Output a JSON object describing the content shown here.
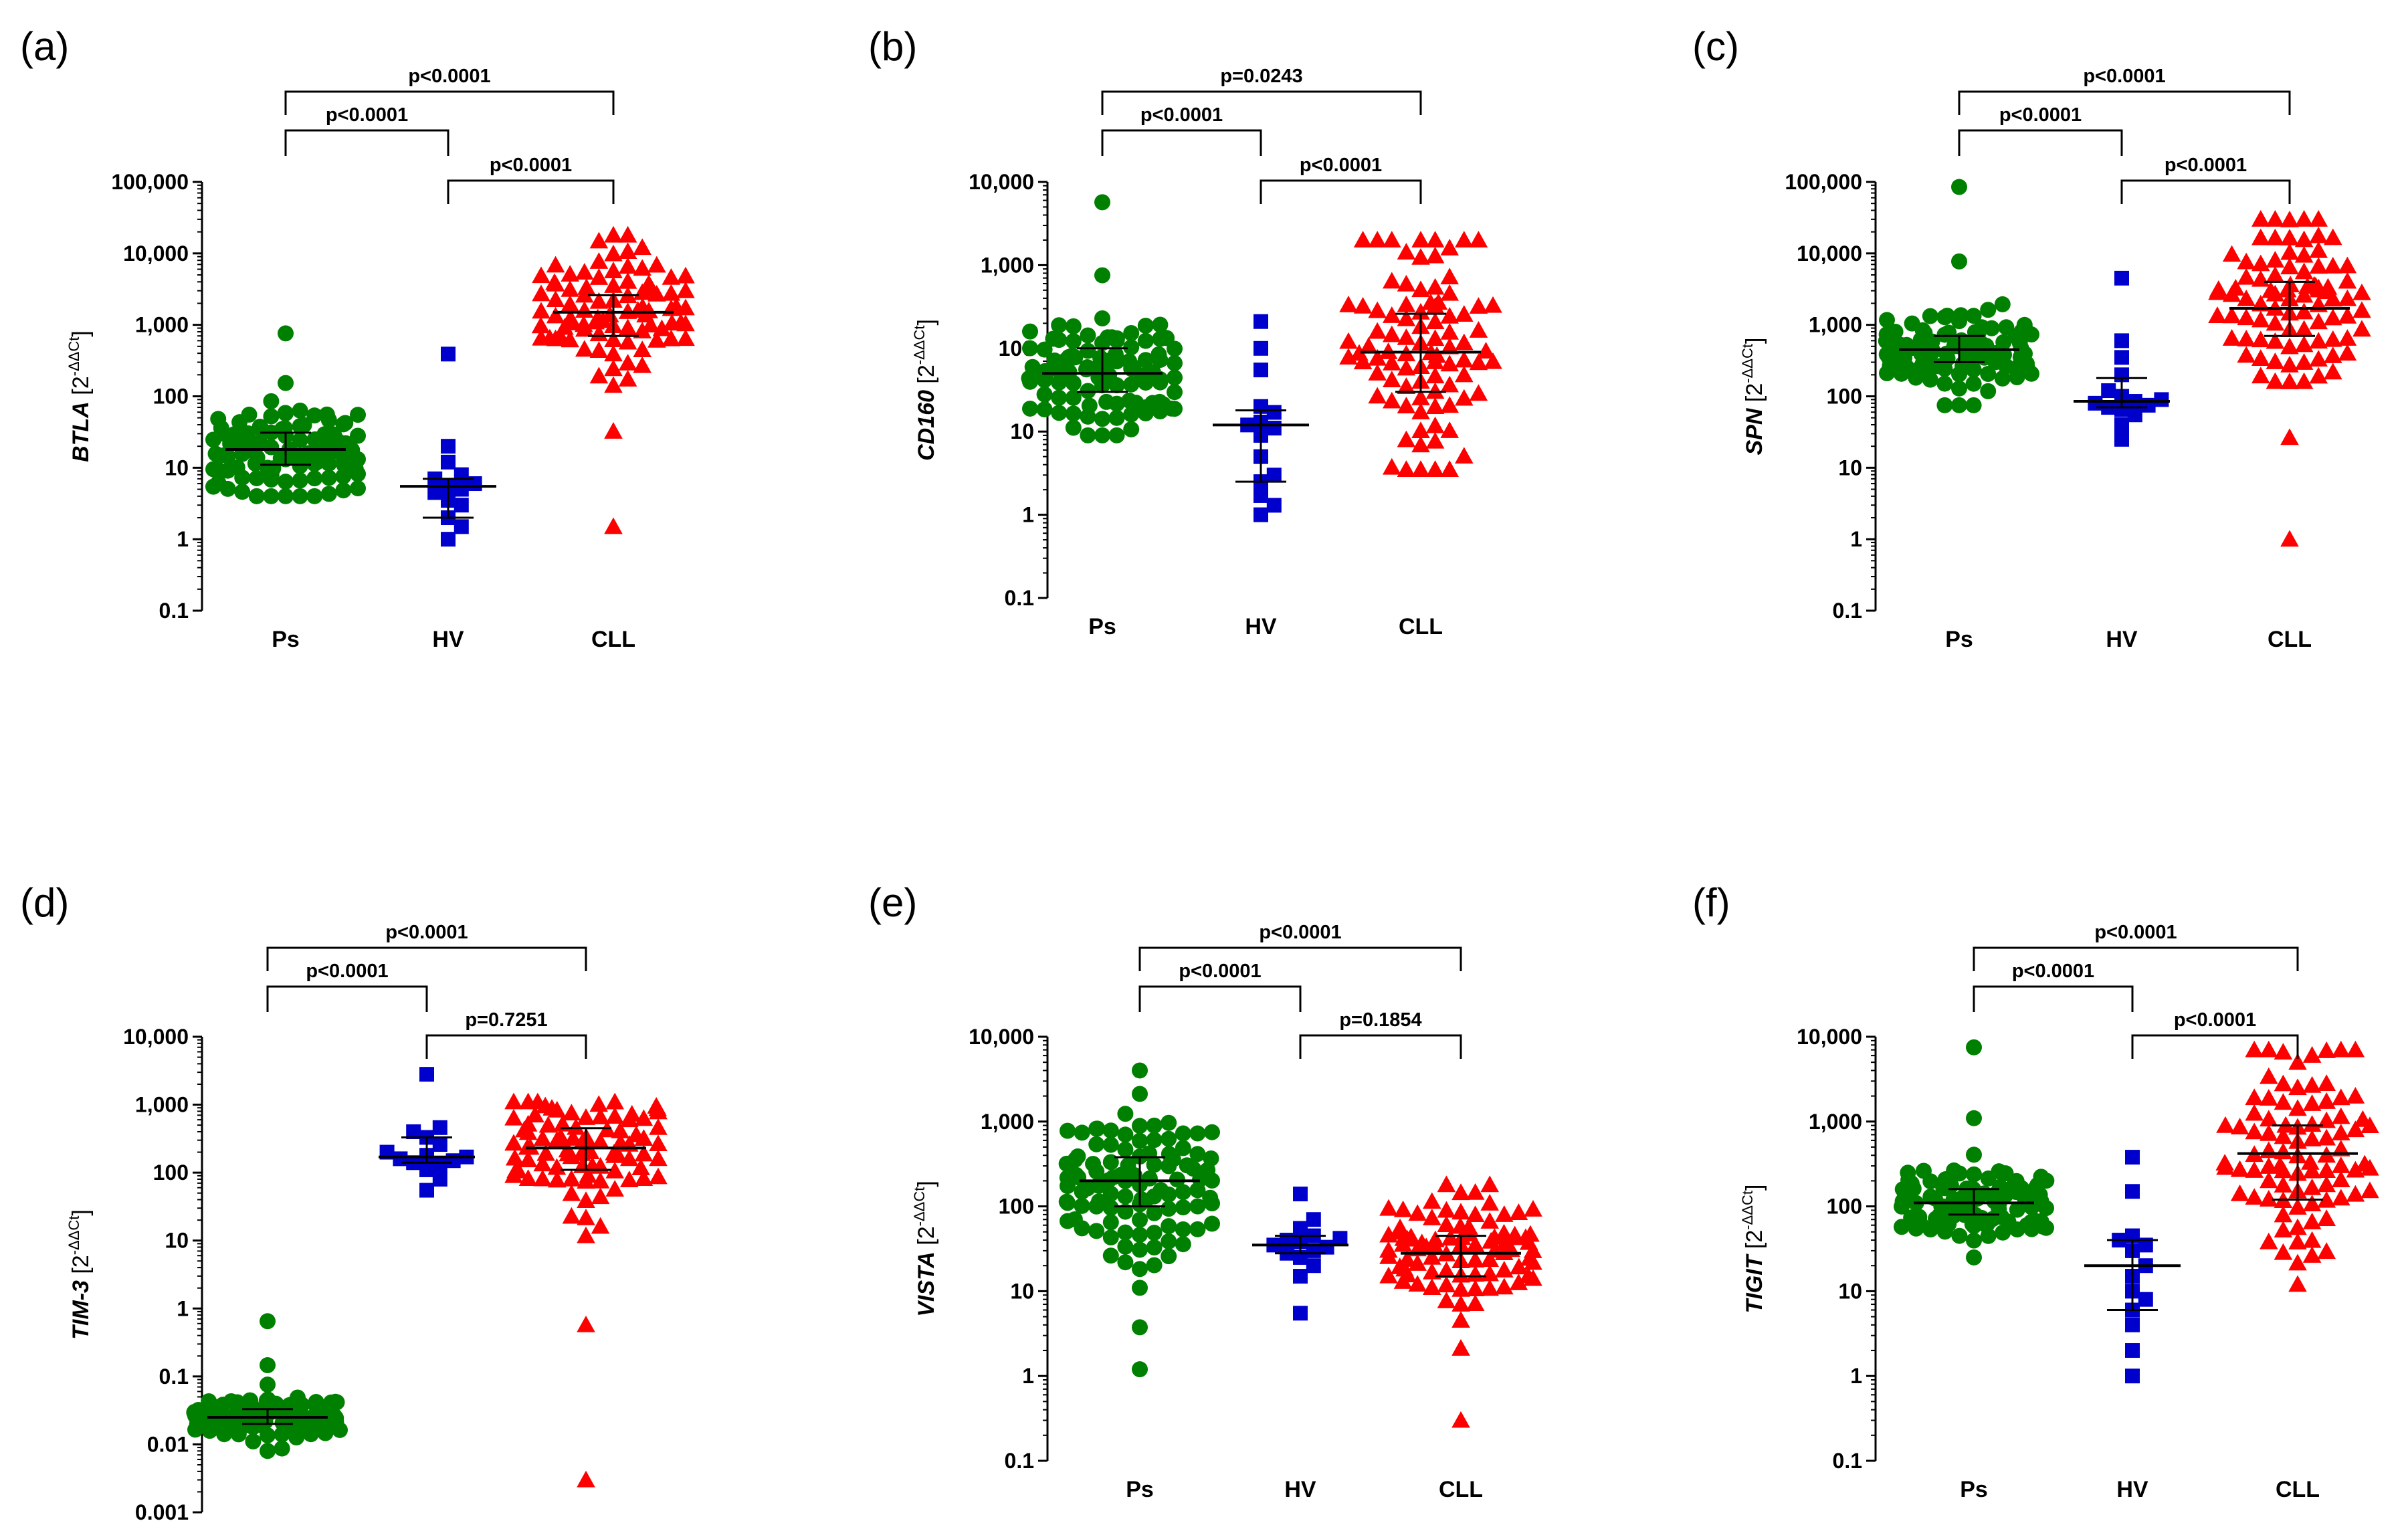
{
  "figure": {
    "group_colors": {
      "Ps": "#008000",
      "HV": "#0000CC",
      "CLL": "#FF0000"
    }
  },
  "chart_data": [
    {
      "type": "scatter",
      "panel": "(a)",
      "gene": "BTLA",
      "ylabel_suffix": " [2",
      "yscale": "log",
      "ylim": [
        0.1,
        100000
      ],
      "yticks": [
        "0.1",
        "1",
        "10",
        "100",
        "1,000",
        "10,000",
        "100,000"
      ],
      "categories": [
        "Ps",
        "HV",
        "CLL"
      ],
      "series": [
        {
          "name": "Ps",
          "marker": "circle",
          "median": 18,
          "q1": 11,
          "q3": 31,
          "n": 110,
          "min": 4,
          "max": 760
        },
        {
          "name": "HV",
          "marker": "square",
          "median": 5.5,
          "q1": 2,
          "q3": 7,
          "n": 14,
          "values": [
            390,
            20,
            12,
            8,
            7,
            6,
            5.5,
            5,
            4.5,
            3.5,
            3,
            2,
            1.5,
            1
          ]
        },
        {
          "name": "CLL",
          "marker": "triangle",
          "median": 1500,
          "q1": 700,
          "q3": 2600,
          "n": 90,
          "min": 1.5,
          "max": 18000
        }
      ],
      "comparisons": [
        {
          "groups": [
            "Ps",
            "CLL"
          ],
          "label": "p<0.0001"
        },
        {
          "groups": [
            "Ps",
            "HV"
          ],
          "label": "p<0.0001"
        },
        {
          "groups": [
            "HV",
            "CLL"
          ],
          "label": "p<0.0001"
        }
      ]
    },
    {
      "type": "scatter",
      "panel": "(b)",
      "gene": "CD160",
      "ylabel_suffix": " [2",
      "yscale": "log",
      "ylim": [
        0.1,
        10000
      ],
      "yticks": [
        "0.1",
        "1",
        "10",
        "100",
        "1,000",
        "10,000"
      ],
      "categories": [
        "Ps",
        "HV",
        "CLL"
      ],
      "series": [
        {
          "name": "Ps",
          "marker": "circle",
          "median": 50,
          "q1": 30,
          "q3": 100,
          "n": 110,
          "min": 9,
          "max": 5700
        },
        {
          "name": "HV",
          "marker": "square",
          "median": 12,
          "q1": 2.5,
          "q3": 18,
          "n": 15,
          "values": [
            210,
            100,
            55,
            20,
            17,
            13,
            12,
            11,
            9,
            5,
            3,
            2.5,
            1.7,
            1.3,
            1
          ]
        },
        {
          "name": "CLL",
          "marker": "triangle",
          "median": 90,
          "q1": 30,
          "q3": 260,
          "n": 90,
          "min": 3.5,
          "max": 2000
        }
      ],
      "comparisons": [
        {
          "groups": [
            "Ps",
            "CLL"
          ],
          "label": "p=0.0243"
        },
        {
          "groups": [
            "Ps",
            "HV"
          ],
          "label": "p<0.0001"
        },
        {
          "groups": [
            "HV",
            "CLL"
          ],
          "label": "p<0.0001"
        }
      ]
    },
    {
      "type": "scatter",
      "panel": "(c)",
      "gene": "SPN",
      "ylabel_suffix": " [2",
      "yscale": "log",
      "ylim": [
        0.1,
        100000
      ],
      "yticks": [
        "0.1",
        "1",
        "10",
        "100",
        "1,000",
        "10,000",
        "100,000"
      ],
      "categories": [
        "Ps",
        "HV",
        "CLL"
      ],
      "series": [
        {
          "name": "Ps",
          "marker": "circle",
          "median": 450,
          "q1": 300,
          "q3": 700,
          "n": 110,
          "min": 75,
          "max": 85000
        },
        {
          "name": "HV",
          "marker": "square",
          "median": 85,
          "q1": 70,
          "q3": 180,
          "n": 15,
          "values": [
            4500,
            600,
            350,
            200,
            120,
            100,
            90,
            85,
            80,
            75,
            70,
            65,
            55,
            40,
            25
          ]
        },
        {
          "name": "CLL",
          "marker": "triangle",
          "median": 1700,
          "q1": 700,
          "q3": 4000,
          "n": 90,
          "min": 1,
          "max": 30000
        }
      ],
      "comparisons": [
        {
          "groups": [
            "Ps",
            "CLL"
          ],
          "label": "p<0.0001"
        },
        {
          "groups": [
            "Ps",
            "HV"
          ],
          "label": "p<0.0001"
        },
        {
          "groups": [
            "HV",
            "CLL"
          ],
          "label": "p<0.0001"
        }
      ]
    },
    {
      "type": "scatter",
      "panel": "(d)",
      "gene": "TIM-3",
      "ylabel_suffix": " [2",
      "yscale": "log",
      "ylim": [
        0.001,
        10000
      ],
      "yticks": [
        "0.001",
        "0.01",
        "0.1",
        "1",
        "10",
        "100",
        "1,000",
        "10,000"
      ],
      "categories": [
        "Ps",
        "HV",
        "CLL"
      ],
      "series": [
        {
          "name": "Ps",
          "marker": "circle",
          "median": 0.025,
          "q1": 0.02,
          "q3": 0.033,
          "n": 110,
          "min": 0.008,
          "max": 0.65
        },
        {
          "name": "HV",
          "marker": "square",
          "median": 170,
          "q1": 140,
          "q3": 330,
          "n": 15,
          "values": [
            2800,
            460,
            400,
            330,
            260,
            200,
            180,
            170,
            160,
            150,
            140,
            130,
            110,
            80,
            55
          ]
        },
        {
          "name": "CLL",
          "marker": "triangle",
          "median": 230,
          "q1": 110,
          "q3": 450,
          "n": 90,
          "min": 0.003,
          "max": 1100
        }
      ],
      "comparisons": [
        {
          "groups": [
            "Ps",
            "CLL"
          ],
          "label": "p<0.0001"
        },
        {
          "groups": [
            "Ps",
            "HV"
          ],
          "label": "p<0.0001"
        },
        {
          "groups": [
            "HV",
            "CLL"
          ],
          "label": "p=0.7251"
        }
      ]
    },
    {
      "type": "scatter",
      "panel": "(e)",
      "gene": "VISTA",
      "ylabel_suffix": " [2",
      "yscale": "log",
      "ylim": [
        0.1,
        10000
      ],
      "yticks": [
        "0.1",
        "1",
        "10",
        "100",
        "1,000",
        "10,000"
      ],
      "categories": [
        "Ps",
        "HV",
        "CLL"
      ],
      "series": [
        {
          "name": "Ps",
          "marker": "circle",
          "median": 200,
          "q1": 100,
          "q3": 380,
          "n": 110,
          "min": 1.2,
          "max": 4000
        },
        {
          "name": "HV",
          "marker": "square",
          "median": 35,
          "q1": 28,
          "q3": 45,
          "n": 15,
          "values": [
            140,
            70,
            55,
            45,
            42,
            40,
            38,
            35,
            33,
            30,
            28,
            25,
            20,
            15,
            5.5
          ]
        },
        {
          "name": "CLL",
          "marker": "triangle",
          "median": 28,
          "q1": 15,
          "q3": 45,
          "n": 90,
          "min": 0.3,
          "max": 180
        }
      ],
      "comparisons": [
        {
          "groups": [
            "Ps",
            "CLL"
          ],
          "label": "p<0.0001"
        },
        {
          "groups": [
            "Ps",
            "HV"
          ],
          "label": "p<0.0001"
        },
        {
          "groups": [
            "HV",
            "CLL"
          ],
          "label": "p=0.1854"
        }
      ]
    },
    {
      "type": "scatter",
      "panel": "(f)",
      "gene": "TIGIT",
      "ylabel_suffix": " [2",
      "yscale": "log",
      "ylim": [
        0.1,
        10000
      ],
      "yticks": [
        "0.1",
        "1",
        "10",
        "100",
        "1,000",
        "10,000"
      ],
      "categories": [
        "Ps",
        "HV",
        "CLL"
      ],
      "series": [
        {
          "name": "Ps",
          "marker": "circle",
          "median": 110,
          "q1": 80,
          "q3": 160,
          "n": 110,
          "min": 25,
          "max": 7500
        },
        {
          "name": "HV",
          "marker": "square",
          "median": 20,
          "q1": 6,
          "q3": 40,
          "n": 14,
          "values": [
            380,
            150,
            45,
            40,
            35,
            30,
            20,
            15,
            10,
            8,
            6,
            4,
            2,
            1
          ]
        },
        {
          "name": "CLL",
          "marker": "triangle",
          "median": 420,
          "q1": 120,
          "q3": 900,
          "n": 90,
          "min": 12,
          "max": 7000
        }
      ],
      "comparisons": [
        {
          "groups": [
            "Ps",
            "CLL"
          ],
          "label": "p<0.0001"
        },
        {
          "groups": [
            "Ps",
            "HV"
          ],
          "label": "p<0.0001"
        },
        {
          "groups": [
            "HV",
            "CLL"
          ],
          "label": "p<0.0001"
        }
      ]
    }
  ]
}
